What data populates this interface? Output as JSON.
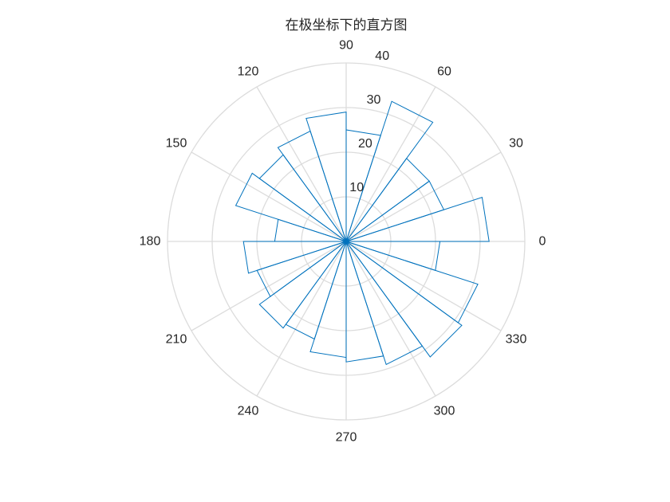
{
  "chart_data": {
    "type": "polar-histogram",
    "title": "在极坐标下的直方图",
    "theta_ticks": [
      "0",
      "30",
      "60",
      "90",
      "120",
      "150",
      "180",
      "210",
      "240",
      "270",
      "300",
      "330"
    ],
    "r_ticks": [
      "10",
      "20",
      "30",
      "40"
    ],
    "rlim": [
      0,
      40
    ],
    "bin_width_deg": 18,
    "bins_start_deg": [
      0,
      18,
      36,
      54,
      72,
      90,
      108,
      126,
      144,
      162,
      180,
      198,
      216,
      234,
      252,
      270,
      288,
      306,
      324,
      342
    ],
    "counts": [
      32,
      23,
      23,
      33,
      25,
      29,
      26,
      24,
      26,
      16,
      23,
      21,
      24,
      23,
      26,
      27,
      29,
      32,
      31,
      21
    ],
    "grid": true,
    "colors": {
      "bar_edge": "#0072bd",
      "grid": "#dcdcdc",
      "text": "#262626"
    }
  }
}
